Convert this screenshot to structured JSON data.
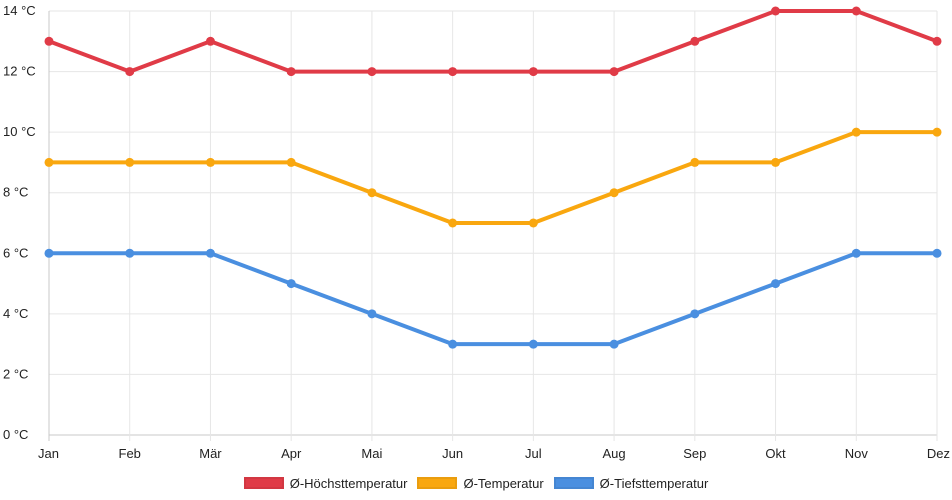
{
  "chart_data": {
    "type": "line",
    "categories": [
      "Jan",
      "Feb",
      "Mär",
      "Apr",
      "Mai",
      "Jun",
      "Jul",
      "Aug",
      "Sep",
      "Okt",
      "Nov",
      "Dez"
    ],
    "ylim": [
      0,
      14
    ],
    "ytick_step": 2,
    "ytick_suffix": " °C",
    "grid": true,
    "legend_position": "bottom",
    "series": [
      {
        "name": "Ø-Höchsttemperatur",
        "color": "#e03b47",
        "values": [
          13,
          12,
          13,
          12,
          12,
          12,
          12,
          12,
          13,
          14,
          14,
          13
        ]
      },
      {
        "name": "Ø-Temperatur",
        "color": "#f9a70f",
        "values": [
          9,
          9,
          9,
          9,
          8,
          7,
          7,
          8,
          9,
          9,
          10,
          10
        ]
      },
      {
        "name": "Ø-Tiefsttemperatur",
        "color": "#4a8fe0",
        "values": [
          6,
          6,
          6,
          5,
          4,
          3,
          3,
          3,
          4,
          5,
          6,
          6
        ]
      }
    ]
  }
}
